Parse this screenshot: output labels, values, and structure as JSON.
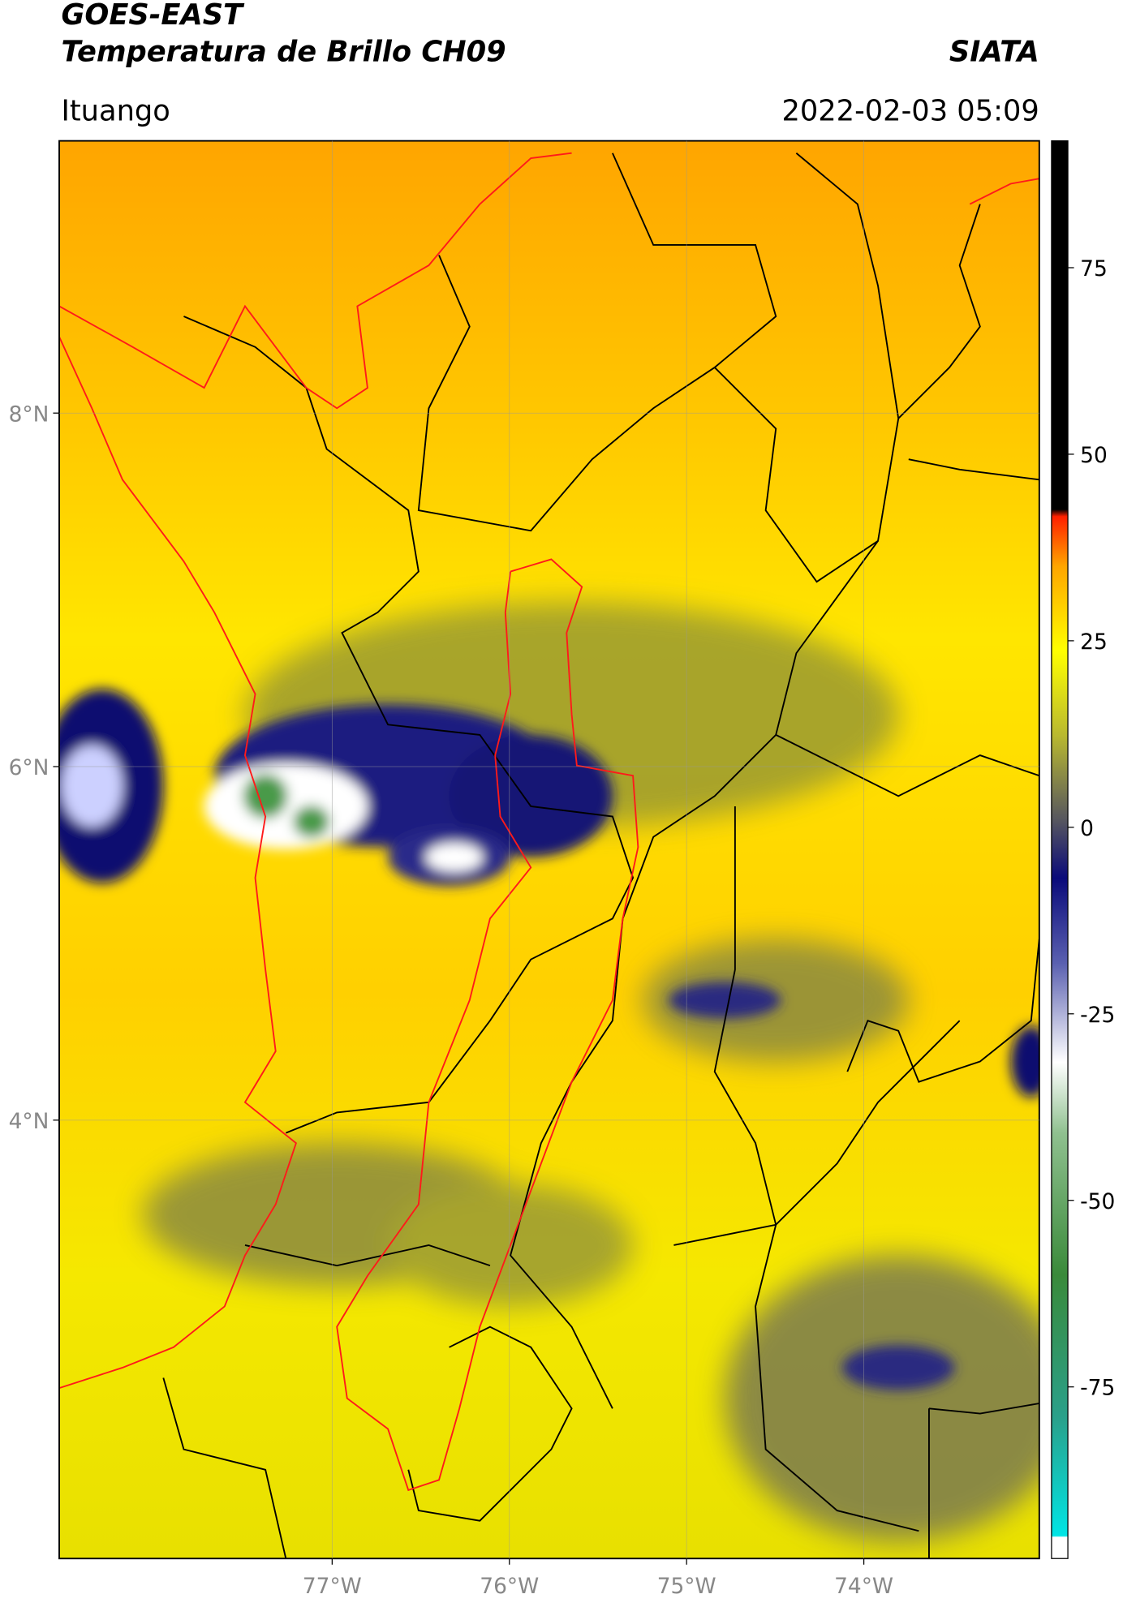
{
  "header": {
    "title": "GOES-EAST",
    "subtitle": "Temperatura de Brillo CH09",
    "agency": "SIATA",
    "location": "Ituango",
    "datetime": "2022-02-03 05:09"
  },
  "map": {
    "lonlim": [
      -78.54,
      -73.01
    ],
    "latlim": [
      1.52,
      9.54
    ],
    "grid": true,
    "lat_ticks": [
      {
        "value": 8,
        "label": "8°N"
      },
      {
        "value": 6,
        "label": "6°N"
      },
      {
        "value": 4,
        "label": "4°N"
      }
    ],
    "lon_ticks": [
      {
        "value": -77,
        "label": "77°W"
      },
      {
        "value": -76,
        "label": "76°W"
      },
      {
        "value": -75,
        "label": "75°W"
      },
      {
        "value": -74,
        "label": "74°W"
      }
    ]
  },
  "colorbar": {
    "vlim": [
      -98,
      92
    ],
    "ticks": [
      75,
      50,
      25,
      0,
      -25,
      -50,
      -75
    ]
  }
}
